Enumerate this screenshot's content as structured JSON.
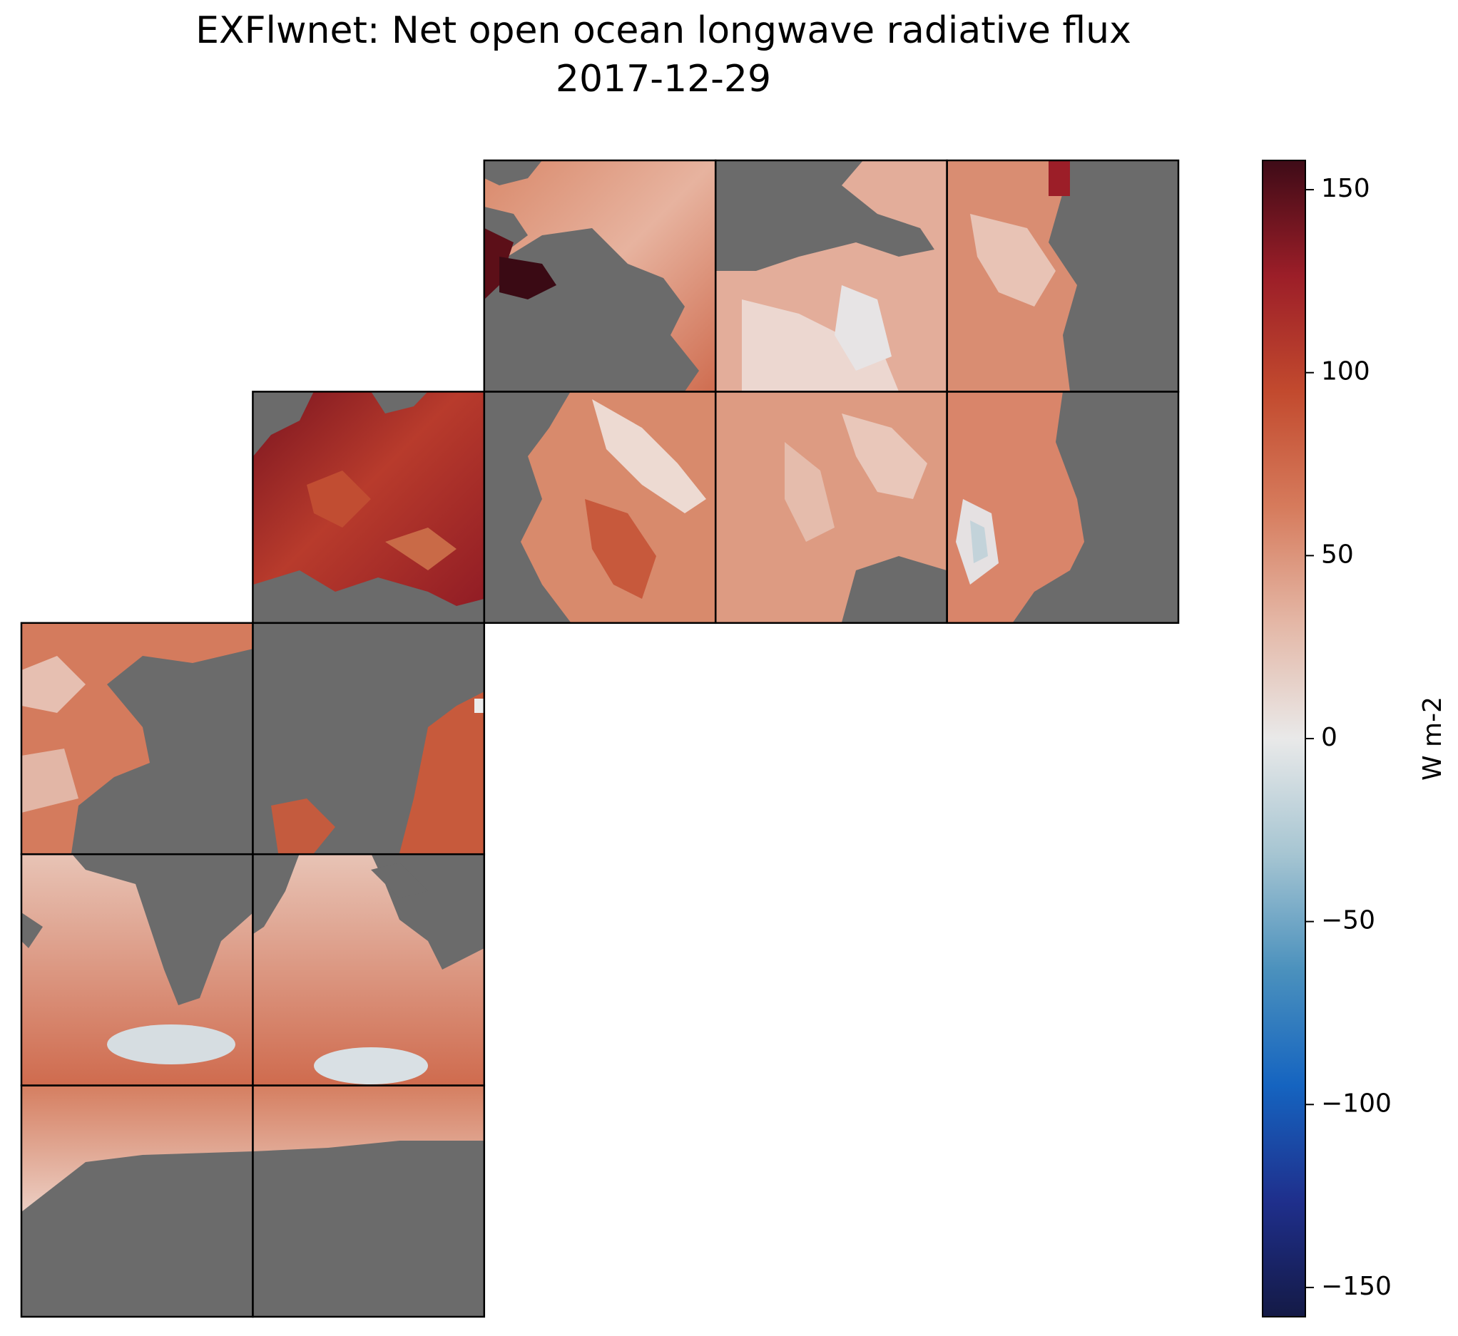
{
  "chart_data": {
    "type": "heatmap",
    "title": "EXFlwnet: Net open ocean longwave radiative flux",
    "subtitle": "2017-12-29",
    "colorbar": {
      "label": "W m-2",
      "range": [
        -158,
        158
      ],
      "ticks": [
        150,
        100,
        50,
        0,
        -50,
        -100,
        -150
      ],
      "tick_labels": [
        "150",
        "100",
        "50",
        "0",
        "−50",
        "−100",
        "−150"
      ],
      "colormap_stops": [
        "#141a46",
        "#1f2f8c",
        "#1564c0",
        "#4b91bd",
        "#a6c5d2",
        "#e9e9e9",
        "#e4b7a6",
        "#d67b5c",
        "#c24a2e",
        "#9c1e28",
        "#3e0b17"
      ]
    },
    "land_color": "#6b6b6b",
    "grid_line_color": "#000000",
    "tiles": [
      {
        "row": 0,
        "col": 2,
        "content": "ocean with land"
      },
      {
        "row": 0,
        "col": 3,
        "content": "ocean with land"
      },
      {
        "row": 0,
        "col": 4,
        "content": "ocean with land"
      },
      {
        "row": 1,
        "col": 1,
        "content": "ocean with land"
      },
      {
        "row": 1,
        "col": 2,
        "content": "ocean with land"
      },
      {
        "row": 1,
        "col": 3,
        "content": "ocean with land"
      },
      {
        "row": 1,
        "col": 4,
        "content": "ocean with land"
      },
      {
        "row": 2,
        "col": 0,
        "content": "ocean with land"
      },
      {
        "row": 2,
        "col": 1,
        "content": "mostly land"
      },
      {
        "row": 3,
        "col": 0,
        "content": "ocean with land"
      },
      {
        "row": 3,
        "col": 1,
        "content": "ocean with land"
      },
      {
        "row": 4,
        "col": 0,
        "content": "ocean with land"
      },
      {
        "row": 4,
        "col": 1,
        "content": "ocean with land"
      }
    ]
  }
}
